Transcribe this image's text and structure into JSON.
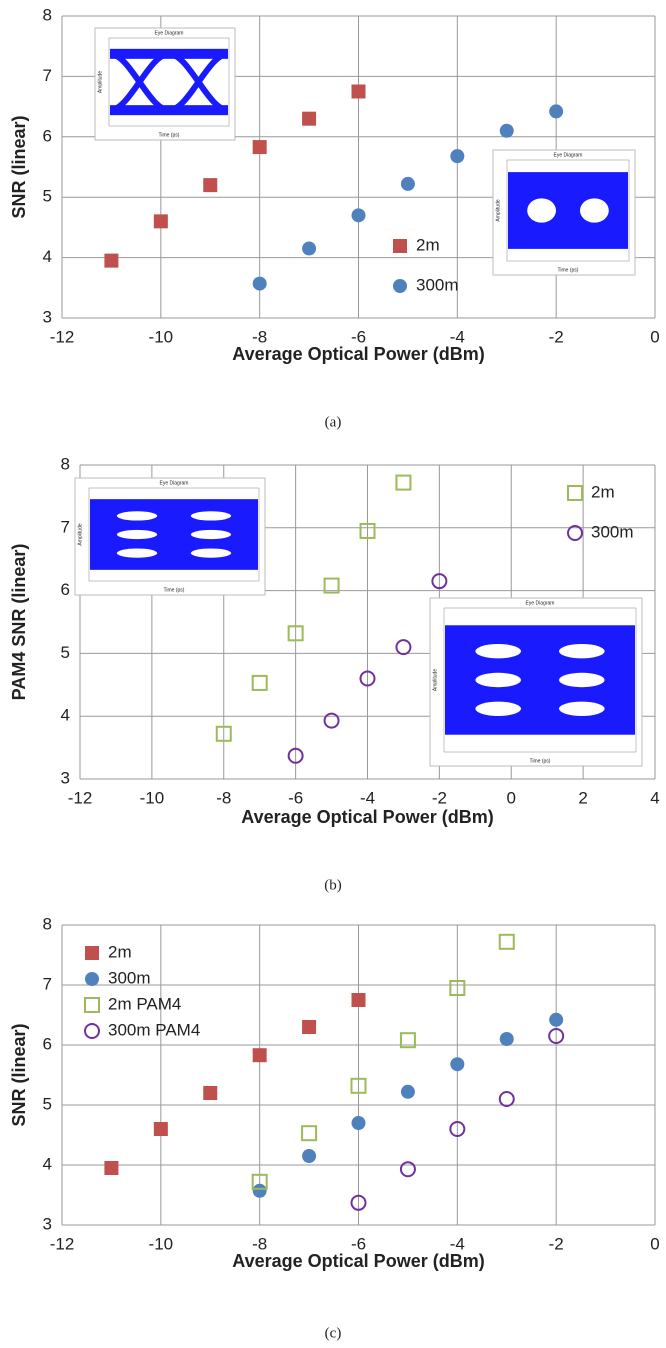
{
  "chart_data": [
    {
      "type": "scatter",
      "caption": "(a)",
      "xlabel": "Average Optical Power (dBm)",
      "ylabel": "SNR (linear)",
      "xlim": [
        -12,
        0
      ],
      "xticks": [
        -12,
        -10,
        -8,
        -6,
        -4,
        -2,
        0
      ],
      "ylim": [
        3,
        8
      ],
      "yticks": [
        3,
        4,
        5,
        6,
        7,
        8
      ],
      "grid": true,
      "legend": "lower right",
      "series": [
        {
          "name": "2m",
          "color": "#c0504d",
          "marker": "square",
          "filled": true,
          "x": [
            -11,
            -10,
            -9,
            -8,
            -7,
            -6
          ],
          "values": [
            3.95,
            4.6,
            5.2,
            5.83,
            6.3,
            6.75
          ]
        },
        {
          "name": "300m",
          "color": "#4f81bd",
          "marker": "circle",
          "filled": true,
          "x": [
            -8,
            -7,
            -6,
            -5,
            -4,
            -3,
            -2
          ],
          "values": [
            3.57,
            4.15,
            4.7,
            5.22,
            5.68,
            6.1,
            6.42
          ]
        }
      ],
      "insets": [
        {
          "title": "Eye Diagram",
          "xlabel": "Time (ps)",
          "ylabel": "Amplitude"
        },
        {
          "title": "Eye Diagram",
          "xlabel": "Time (ps)",
          "ylabel": "Amplitude"
        }
      ]
    },
    {
      "type": "scatter",
      "caption": "(b)",
      "xlabel": "Average Optical Power (dBm)",
      "ylabel": "PAM4 SNR (linear)",
      "xlim": [
        -12,
        4
      ],
      "xticks": [
        -12,
        -10,
        -8,
        -6,
        -4,
        -2,
        0,
        2,
        4
      ],
      "ylim": [
        3,
        8
      ],
      "yticks": [
        3,
        4,
        5,
        6,
        7,
        8
      ],
      "grid": true,
      "legend": "upper right",
      "series": [
        {
          "name": "2m",
          "color": "#9bbb59",
          "marker": "square",
          "filled": false,
          "x": [
            -8,
            -7,
            -6,
            -5,
            -4,
            -3
          ],
          "values": [
            3.72,
            4.53,
            5.32,
            6.08,
            6.95,
            7.72
          ]
        },
        {
          "name": "300m",
          "color": "#7030a0",
          "marker": "circle",
          "filled": false,
          "x": [
            -6,
            -5,
            -4,
            -3,
            -2
          ],
          "values": [
            3.37,
            3.93,
            4.6,
            5.1,
            6.15
          ]
        }
      ],
      "insets": [
        {
          "title": "Eye Diagram",
          "xlabel": "Time (ps)",
          "ylabel": "Amplitude"
        },
        {
          "title": "Eye Diagram",
          "xlabel": "Time (ps)",
          "ylabel": "Amplitude"
        }
      ]
    },
    {
      "type": "scatter",
      "caption": "(c)",
      "xlabel": "Average Optical Power (dBm)",
      "ylabel": "SNR (linear)",
      "xlim": [
        -12,
        0
      ],
      "xticks": [
        -12,
        -10,
        -8,
        -6,
        -4,
        -2,
        0
      ],
      "ylim": [
        3,
        8
      ],
      "yticks": [
        3,
        4,
        5,
        6,
        7,
        8
      ],
      "grid": true,
      "legend": "upper left",
      "series": [
        {
          "name": "2m",
          "color": "#c0504d",
          "marker": "square",
          "filled": true,
          "x": [
            -11,
            -10,
            -9,
            -8,
            -7,
            -6
          ],
          "values": [
            3.95,
            4.6,
            5.2,
            5.83,
            6.3,
            6.75
          ]
        },
        {
          "name": "300m",
          "color": "#4f81bd",
          "marker": "circle",
          "filled": true,
          "x": [
            -8,
            -7,
            -6,
            -5,
            -4,
            -3,
            -2
          ],
          "values": [
            3.57,
            4.15,
            4.7,
            5.22,
            5.68,
            6.1,
            6.42
          ]
        },
        {
          "name": "2m PAM4",
          "color": "#9bbb59",
          "marker": "square",
          "filled": false,
          "x": [
            -8,
            -7,
            -6,
            -5,
            -4,
            -3
          ],
          "values": [
            3.72,
            4.53,
            5.32,
            6.08,
            6.95,
            7.72
          ]
        },
        {
          "name": "300m PAM4",
          "color": "#7030a0",
          "marker": "circle",
          "filled": false,
          "x": [
            -6,
            -5,
            -4,
            -3,
            -2
          ],
          "values": [
            3.37,
            3.93,
            4.6,
            5.1,
            6.15
          ]
        }
      ]
    }
  ]
}
